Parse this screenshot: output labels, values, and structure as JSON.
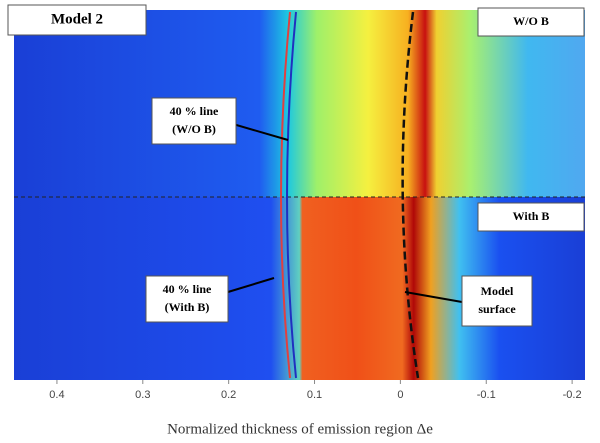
{
  "chart_data": {
    "type": "heatmap",
    "title": "Model 2",
    "panel_labels": [
      "W/O B",
      "With B"
    ],
    "annotations": [
      "40 % line",
      "(W/O B)",
      "40 % line",
      "(With B)",
      "Model",
      "surface"
    ],
    "x_label": "Normalized thickness of emission region Δe",
    "xlim": [
      0.45,
      -0.215
    ],
    "xticks": [
      0.4,
      0.3,
      0.2,
      0.1,
      0,
      -0.1,
      -0.2
    ]
  }
}
